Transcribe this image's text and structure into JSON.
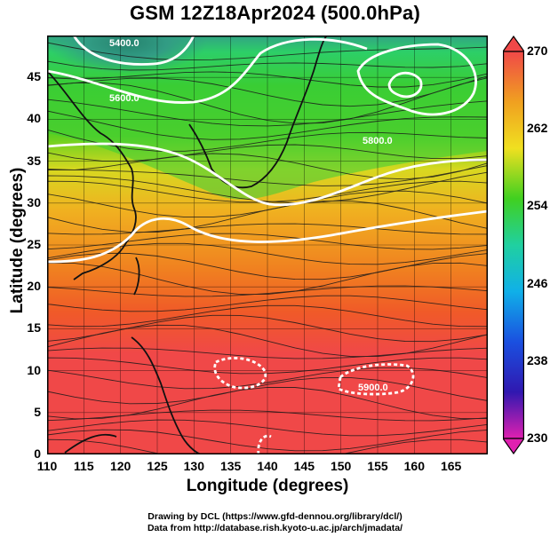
{
  "title": "GSM 12Z18Apr2024 (500.0hPa)",
  "map": {
    "type": "geopotential-height contour / streamline map",
    "shaded_field": "temperature (K) color shading",
    "x_axis": {
      "label": "Longitude (degrees)",
      "range": [
        110,
        170
      ],
      "ticks": [
        "110",
        "115",
        "120",
        "125",
        "130",
        "135",
        "140",
        "145",
        "150",
        "155",
        "160",
        "165"
      ]
    },
    "y_axis": {
      "label": "Latitude  (degrees)",
      "range": [
        0,
        50
      ],
      "ticks": [
        "0",
        "5",
        "10",
        "15",
        "20",
        "25",
        "30",
        "35",
        "40",
        "45"
      ]
    },
    "contour_labels": [
      {
        "text": "5400.0",
        "lon": 120,
        "lat": 49
      },
      {
        "text": "5600.0",
        "lon": 120,
        "lat": 43
      },
      {
        "text": "5800.0",
        "lon": 153,
        "lat": 37
      },
      {
        "text": "5900.0",
        "lon": 155,
        "lat": 8
      }
    ],
    "colors": {
      "land_outline": "#111111",
      "contour": "#ffffff",
      "streamline": "#1a1a1a"
    }
  },
  "colorbar": {
    "ticks": [
      "230",
      "238",
      "246",
      "254",
      "262",
      "270"
    ],
    "range": [
      230,
      270
    ],
    "colors": [
      "#e020b0",
      "#2020c0",
      "#10a0e8",
      "#20d0a0",
      "#40d020",
      "#e8e020",
      "#f0a020",
      "#f06030",
      "#f04848"
    ]
  },
  "credits": {
    "line1": "Drawing by DCL (https://www.gfd-dennou.org/library/dcl/)",
    "line2": "Data from http://database.rish.kyoto-u.ac.jp/arch/jmadata/"
  }
}
